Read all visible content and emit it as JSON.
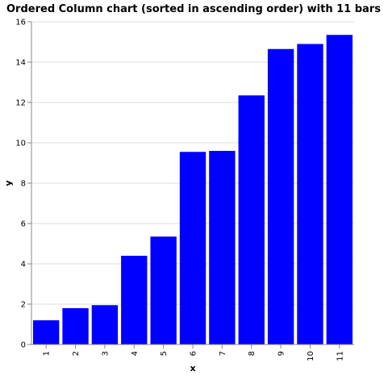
{
  "chart_data": {
    "type": "bar",
    "title": "Ordered Column chart (sorted in ascending order) with 11 bars",
    "xlabel": "x",
    "ylabel": "y",
    "categories": [
      "1",
      "2",
      "3",
      "4",
      "5",
      "6",
      "7",
      "8",
      "9",
      "10",
      "11"
    ],
    "values": [
      1.2,
      1.8,
      1.95,
      4.4,
      5.35,
      9.55,
      9.6,
      12.35,
      14.65,
      14.9,
      15.35
    ],
    "ylim": [
      0,
      16
    ],
    "yticks": [
      0,
      2,
      4,
      6,
      8,
      10,
      12,
      14,
      16
    ],
    "grid": true,
    "legend": "none",
    "bar_color": "#0000ff",
    "grid_color": "#dddddd",
    "axis_color": "#888888"
  }
}
